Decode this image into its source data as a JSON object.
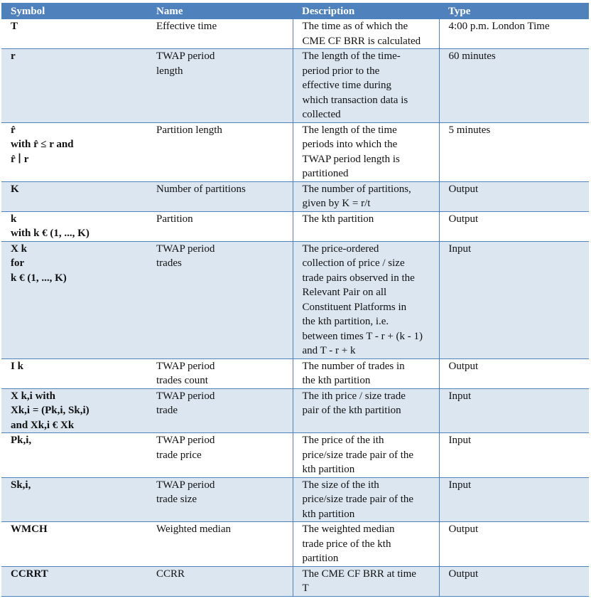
{
  "header": {
    "symbol": "Symbol",
    "name": "Name",
    "description": "Description",
    "type": "Type"
  },
  "rows": [
    {
      "symbol": [
        "T"
      ],
      "name": [
        "Effective time"
      ],
      "description": [
        "The time as of which the",
        "CME CF BRR is calculated"
      ],
      "type": "4:00 p.m. London Time"
    },
    {
      "symbol": [
        "r"
      ],
      "name": [
        "TWAP period",
        "length"
      ],
      "description": [
        "The length of the time-",
        "period prior to the",
        "effective time during",
        "which transaction data is",
        "collected"
      ],
      "type": "60 minutes"
    },
    {
      "symbol": [
        "r̂",
        "with r̂ ≤ r and",
        "r̂ ∣ r"
      ],
      "name": [
        "Partition length"
      ],
      "description": [
        "The length of the time",
        "periods into which the",
        "TWAP period length is",
        "partitioned"
      ],
      "type": "5 minutes"
    },
    {
      "symbol": [
        "K"
      ],
      "name": [
        "Number of partitions"
      ],
      "description": [
        "The number of partitions,",
        "given by K = r/t"
      ],
      "type": "Output"
    },
    {
      "symbol": [
        "k",
        "with k € (1, ..., K)"
      ],
      "name": [
        "Partition"
      ],
      "description": [
        "The kth partition"
      ],
      "type": "Output"
    },
    {
      "symbol": [
        "X k",
        "for",
        "k € (1, ..., K)"
      ],
      "name": [
        "TWAP period",
        "trades"
      ],
      "description": [
        "The price-ordered",
        "collection of price / size",
        "trade pairs observed in the",
        "Relevant Pair on all",
        "Constituent Platforms in",
        "the kth partition, i.e.",
        "between times T - r + (k - 1)",
        "and T - r + k"
      ],
      "type": "Input"
    },
    {
      "symbol": [
        "I k"
      ],
      "name": [
        "TWAP period",
        "trades count"
      ],
      "description": [
        "The number of trades in",
        "the kth partition"
      ],
      "type": "Output"
    },
    {
      "symbol": [
        "X k,i with",
        "Xk,i = (Pk,i, Sk,i)",
        "and Xk,i € Xk"
      ],
      "name": [
        "TWAP period",
        "trade"
      ],
      "description": [
        "The ith price / size trade",
        "pair of the kth partition"
      ],
      "type": "Input"
    },
    {
      "symbol": [
        "Pk,i,"
      ],
      "name": [
        "TWAP period",
        "trade price"
      ],
      "description": [
        "The price of the ith",
        "price/size trade pair of the",
        "kth partition"
      ],
      "type": "Input"
    },
    {
      "symbol": [
        "Sk,i,"
      ],
      "name": [
        "TWAP period",
        "trade size"
      ],
      "description": [
        "The size of the ith",
        "price/size trade pair of the",
        "kth partition"
      ],
      "type": "Input"
    },
    {
      "symbol": [
        "WMCH"
      ],
      "name": [
        "Weighted median"
      ],
      "description": [
        "The weighted median",
        "trade price of the kth",
        "partition"
      ],
      "type": "Output"
    },
    {
      "symbol": [
        "CCRRT"
      ],
      "name": [
        "CCRR"
      ],
      "description": [
        "The CME CF BRR at time",
        "T"
      ],
      "type": "Output"
    }
  ]
}
